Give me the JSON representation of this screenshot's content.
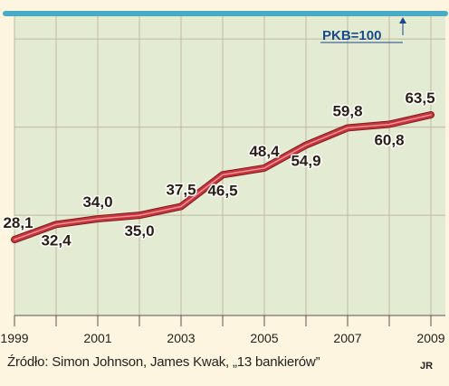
{
  "chart_data": {
    "type": "line",
    "x": [
      1999,
      2000,
      2001,
      2002,
      2003,
      2004,
      2005,
      2006,
      2007,
      2008,
      2009
    ],
    "values": [
      28.1,
      32.4,
      34.0,
      35.0,
      37.5,
      46.5,
      48.4,
      54.9,
      59.8,
      60.8,
      63.5
    ],
    "value_labels": [
      "28,1",
      "32,4",
      "34,0",
      "35,0",
      "37,5",
      "46,5",
      "48,4",
      "54,9",
      "59,8",
      "60,8",
      "63,5"
    ],
    "x_tick_labels": [
      "1999",
      "2001",
      "2003",
      "2005",
      "2007",
      "2009"
    ],
    "reference_line": {
      "value": 100,
      "label": "PKB=100"
    },
    "grid": true,
    "colors": {
      "line": "#c7343b",
      "reference": "#4aa9c4",
      "plot_background": "#e3ebd3",
      "grid": "#c0b89c",
      "note_text": "#1b4a8c"
    }
  },
  "source": "Źródło: Simon Johnson, James Kwak, „13 bankierów”",
  "author": "JR"
}
